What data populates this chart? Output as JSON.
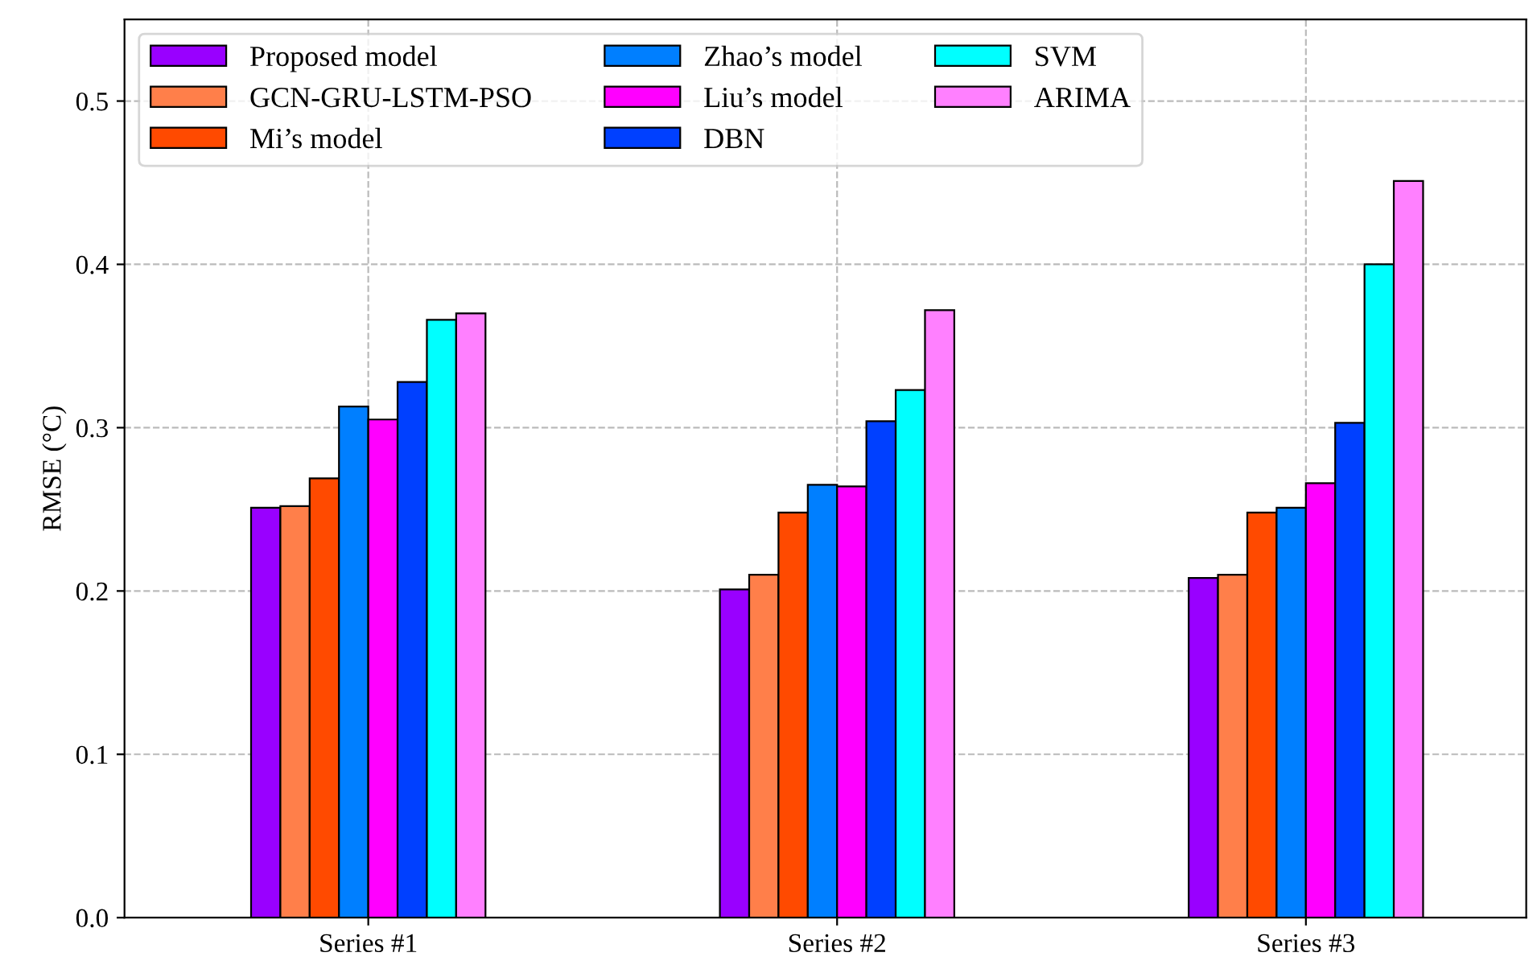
{
  "chart_data": {
    "type": "bar",
    "ylabel": "RMSE (°C)",
    "categories": [
      "Series #1",
      "Series #2",
      "Series #3"
    ],
    "series": [
      {
        "name": "Proposed model",
        "color": "#9900ff",
        "values": [
          0.251,
          0.201,
          0.208
        ]
      },
      {
        "name": "GCN-GRU-LSTM-PSO",
        "color": "#ff7f4a",
        "values": [
          0.252,
          0.21,
          0.21
        ]
      },
      {
        "name": "Mi’s model",
        "color": "#ff4a00",
        "values": [
          0.269,
          0.248,
          0.248
        ]
      },
      {
        "name": "Zhao’s model",
        "color": "#007fff",
        "values": [
          0.313,
          0.265,
          0.251
        ]
      },
      {
        "name": "Liu’s model",
        "color": "#ff00ff",
        "values": [
          0.305,
          0.264,
          0.266
        ]
      },
      {
        "name": "DBN",
        "color": "#0040ff",
        "values": [
          0.328,
          0.304,
          0.303
        ]
      },
      {
        "name": "SVM",
        "color": "#00ffff",
        "values": [
          0.366,
          0.323,
          0.4
        ]
      },
      {
        "name": "ARIMA",
        "color": "#ff80ff",
        "values": [
          0.37,
          0.372,
          0.451
        ]
      }
    ],
    "ylim": [
      0,
      0.55
    ],
    "yticks": [
      {
        "value": 0,
        "label": "0.0"
      },
      0.1,
      0.2,
      0.3,
      0.4,
      0.5
    ],
    "grid": true,
    "legend": "top left"
  }
}
